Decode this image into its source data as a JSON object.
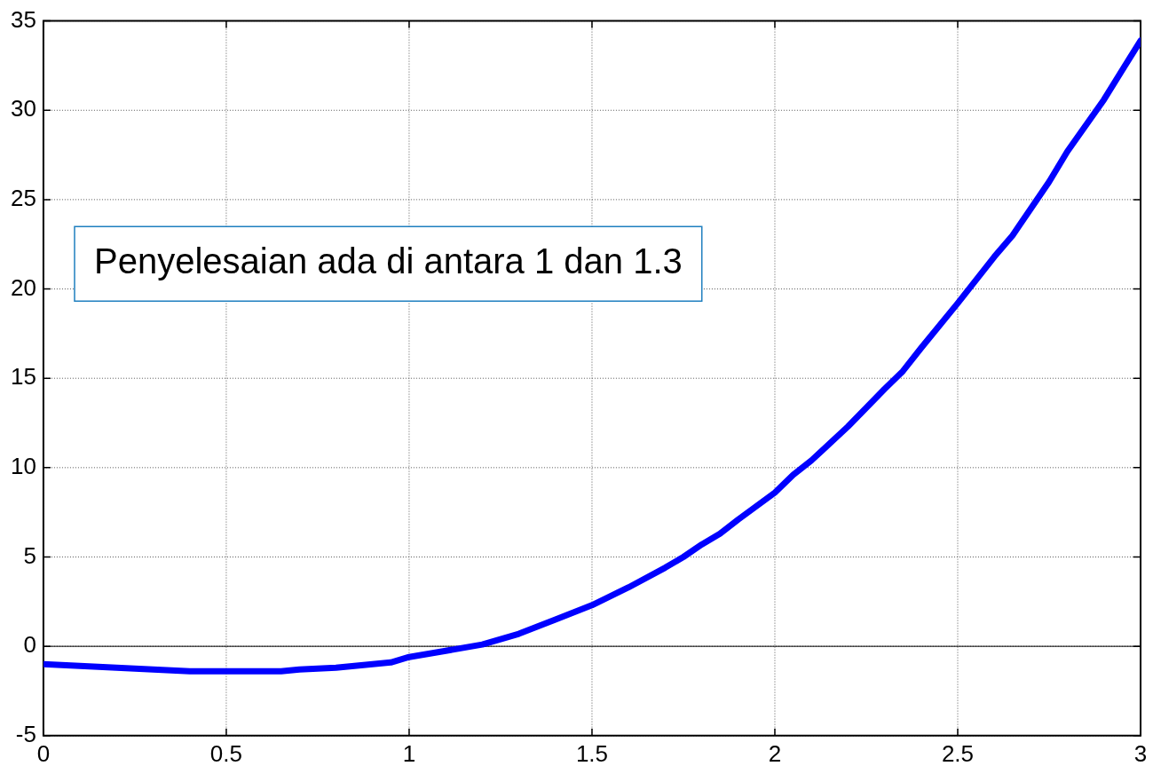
{
  "chart_data": {
    "type": "line",
    "x": [
      0,
      0.1,
      0.2,
      0.3,
      0.4,
      0.5,
      0.6,
      0.65,
      0.7,
      0.8,
      0.9,
      0.95,
      1.0,
      1.1,
      1.2,
      1.3,
      1.35,
      1.4,
      1.5,
      1.6,
      1.7,
      1.75,
      1.8,
      1.85,
      1.9,
      2.0,
      2.05,
      2.1,
      2.2,
      2.3,
      2.35,
      2.4,
      2.5,
      2.6,
      2.65,
      2.7,
      2.75,
      2.8,
      2.9,
      3.0
    ],
    "series": [
      {
        "color": "#0000ff",
        "values": [
          -1.0,
          -1.1,
          -1.2,
          -1.3,
          -1.4,
          -1.4,
          -1.4,
          -1.4,
          -1.3,
          -1.2,
          -1.0,
          -0.9,
          -0.6,
          -0.25,
          0.1,
          0.7,
          1.1,
          1.5,
          2.3,
          3.3,
          4.4,
          5.0,
          5.7,
          6.3,
          7.1,
          8.6,
          9.6,
          10.4,
          12.3,
          14.4,
          15.4,
          16.7,
          19.2,
          21.8,
          23.0,
          24.5,
          26.0,
          27.7,
          30.6,
          33.9
        ]
      }
    ],
    "xlim": [
      0,
      3
    ],
    "xticks": [
      0,
      0.5,
      1,
      1.5,
      2,
      2.5,
      3
    ],
    "ylim": [
      -5,
      35
    ],
    "yticks": [
      -5,
      0,
      5,
      10,
      15,
      20,
      25,
      30,
      35
    ],
    "ref_lines": [
      {
        "axis": "y",
        "value": 0,
        "color": "#000000"
      }
    ],
    "annotations": [
      "Penyelesaian ada di antara 1 dan 1.3"
    ],
    "grid": true,
    "legend": false,
    "marker": "none",
    "line_style": "solid"
  }
}
